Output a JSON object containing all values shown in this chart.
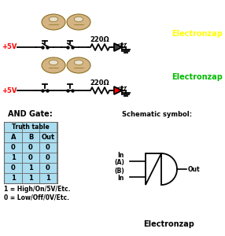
{
  "bg": "#ffffff",
  "yellow": "#ffff00",
  "green": "#00bb00",
  "red": "#ff0000",
  "plus5v_color": "#ff0000",
  "finger_color": "#d4b483",
  "finger_edge": "#8b7020",
  "nail_color": "#e8e0cc",
  "table_bg": "#aaddf0",
  "wire_color": "#000000",
  "truth_table": {
    "headers": [
      "A",
      "B",
      "Out"
    ],
    "rows": [
      [
        "0",
        "0",
        "0"
      ],
      [
        "1",
        "0",
        "0"
      ],
      [
        "0",
        "1",
        "0"
      ],
      [
        "1",
        "1",
        "1"
      ]
    ]
  },
  "notes": [
    "1 = High/On/5V/Etc.",
    "0 = Low/Off/0V/Etc."
  ]
}
